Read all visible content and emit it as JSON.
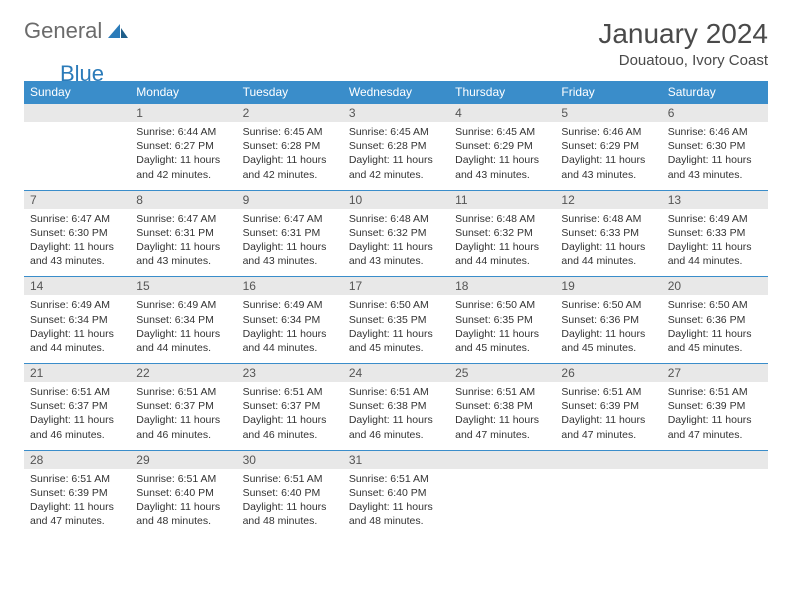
{
  "brand": {
    "word1": "General",
    "word2": "Blue"
  },
  "title": "January 2024",
  "location": "Douatouo, Ivory Coast",
  "colors": {
    "header_bg": "#3a8dca",
    "header_fg": "#ffffff",
    "daynum_bg": "#e8e8e8",
    "rule": "#3a8dca",
    "brand_gray": "#6b6b6b",
    "brand_blue": "#2b7bb9"
  },
  "day_headers": [
    "Sunday",
    "Monday",
    "Tuesday",
    "Wednesday",
    "Thursday",
    "Friday",
    "Saturday"
  ],
  "weeks": [
    [
      {
        "n": "",
        "sunrise": "",
        "sunset": "",
        "daylight": ""
      },
      {
        "n": "1",
        "sunrise": "Sunrise: 6:44 AM",
        "sunset": "Sunset: 6:27 PM",
        "daylight": "Daylight: 11 hours and 42 minutes."
      },
      {
        "n": "2",
        "sunrise": "Sunrise: 6:45 AM",
        "sunset": "Sunset: 6:28 PM",
        "daylight": "Daylight: 11 hours and 42 minutes."
      },
      {
        "n": "3",
        "sunrise": "Sunrise: 6:45 AM",
        "sunset": "Sunset: 6:28 PM",
        "daylight": "Daylight: 11 hours and 42 minutes."
      },
      {
        "n": "4",
        "sunrise": "Sunrise: 6:45 AM",
        "sunset": "Sunset: 6:29 PM",
        "daylight": "Daylight: 11 hours and 43 minutes."
      },
      {
        "n": "5",
        "sunrise": "Sunrise: 6:46 AM",
        "sunset": "Sunset: 6:29 PM",
        "daylight": "Daylight: 11 hours and 43 minutes."
      },
      {
        "n": "6",
        "sunrise": "Sunrise: 6:46 AM",
        "sunset": "Sunset: 6:30 PM",
        "daylight": "Daylight: 11 hours and 43 minutes."
      }
    ],
    [
      {
        "n": "7",
        "sunrise": "Sunrise: 6:47 AM",
        "sunset": "Sunset: 6:30 PM",
        "daylight": "Daylight: 11 hours and 43 minutes."
      },
      {
        "n": "8",
        "sunrise": "Sunrise: 6:47 AM",
        "sunset": "Sunset: 6:31 PM",
        "daylight": "Daylight: 11 hours and 43 minutes."
      },
      {
        "n": "9",
        "sunrise": "Sunrise: 6:47 AM",
        "sunset": "Sunset: 6:31 PM",
        "daylight": "Daylight: 11 hours and 43 minutes."
      },
      {
        "n": "10",
        "sunrise": "Sunrise: 6:48 AM",
        "sunset": "Sunset: 6:32 PM",
        "daylight": "Daylight: 11 hours and 43 minutes."
      },
      {
        "n": "11",
        "sunrise": "Sunrise: 6:48 AM",
        "sunset": "Sunset: 6:32 PM",
        "daylight": "Daylight: 11 hours and 44 minutes."
      },
      {
        "n": "12",
        "sunrise": "Sunrise: 6:48 AM",
        "sunset": "Sunset: 6:33 PM",
        "daylight": "Daylight: 11 hours and 44 minutes."
      },
      {
        "n": "13",
        "sunrise": "Sunrise: 6:49 AM",
        "sunset": "Sunset: 6:33 PM",
        "daylight": "Daylight: 11 hours and 44 minutes."
      }
    ],
    [
      {
        "n": "14",
        "sunrise": "Sunrise: 6:49 AM",
        "sunset": "Sunset: 6:34 PM",
        "daylight": "Daylight: 11 hours and 44 minutes."
      },
      {
        "n": "15",
        "sunrise": "Sunrise: 6:49 AM",
        "sunset": "Sunset: 6:34 PM",
        "daylight": "Daylight: 11 hours and 44 minutes."
      },
      {
        "n": "16",
        "sunrise": "Sunrise: 6:49 AM",
        "sunset": "Sunset: 6:34 PM",
        "daylight": "Daylight: 11 hours and 44 minutes."
      },
      {
        "n": "17",
        "sunrise": "Sunrise: 6:50 AM",
        "sunset": "Sunset: 6:35 PM",
        "daylight": "Daylight: 11 hours and 45 minutes."
      },
      {
        "n": "18",
        "sunrise": "Sunrise: 6:50 AM",
        "sunset": "Sunset: 6:35 PM",
        "daylight": "Daylight: 11 hours and 45 minutes."
      },
      {
        "n": "19",
        "sunrise": "Sunrise: 6:50 AM",
        "sunset": "Sunset: 6:36 PM",
        "daylight": "Daylight: 11 hours and 45 minutes."
      },
      {
        "n": "20",
        "sunrise": "Sunrise: 6:50 AM",
        "sunset": "Sunset: 6:36 PM",
        "daylight": "Daylight: 11 hours and 45 minutes."
      }
    ],
    [
      {
        "n": "21",
        "sunrise": "Sunrise: 6:51 AM",
        "sunset": "Sunset: 6:37 PM",
        "daylight": "Daylight: 11 hours and 46 minutes."
      },
      {
        "n": "22",
        "sunrise": "Sunrise: 6:51 AM",
        "sunset": "Sunset: 6:37 PM",
        "daylight": "Daylight: 11 hours and 46 minutes."
      },
      {
        "n": "23",
        "sunrise": "Sunrise: 6:51 AM",
        "sunset": "Sunset: 6:37 PM",
        "daylight": "Daylight: 11 hours and 46 minutes."
      },
      {
        "n": "24",
        "sunrise": "Sunrise: 6:51 AM",
        "sunset": "Sunset: 6:38 PM",
        "daylight": "Daylight: 11 hours and 46 minutes."
      },
      {
        "n": "25",
        "sunrise": "Sunrise: 6:51 AM",
        "sunset": "Sunset: 6:38 PM",
        "daylight": "Daylight: 11 hours and 47 minutes."
      },
      {
        "n": "26",
        "sunrise": "Sunrise: 6:51 AM",
        "sunset": "Sunset: 6:39 PM",
        "daylight": "Daylight: 11 hours and 47 minutes."
      },
      {
        "n": "27",
        "sunrise": "Sunrise: 6:51 AM",
        "sunset": "Sunset: 6:39 PM",
        "daylight": "Daylight: 11 hours and 47 minutes."
      }
    ],
    [
      {
        "n": "28",
        "sunrise": "Sunrise: 6:51 AM",
        "sunset": "Sunset: 6:39 PM",
        "daylight": "Daylight: 11 hours and 47 minutes."
      },
      {
        "n": "29",
        "sunrise": "Sunrise: 6:51 AM",
        "sunset": "Sunset: 6:40 PM",
        "daylight": "Daylight: 11 hours and 48 minutes."
      },
      {
        "n": "30",
        "sunrise": "Sunrise: 6:51 AM",
        "sunset": "Sunset: 6:40 PM",
        "daylight": "Daylight: 11 hours and 48 minutes."
      },
      {
        "n": "31",
        "sunrise": "Sunrise: 6:51 AM",
        "sunset": "Sunset: 6:40 PM",
        "daylight": "Daylight: 11 hours and 48 minutes."
      },
      {
        "n": "",
        "sunrise": "",
        "sunset": "",
        "daylight": ""
      },
      {
        "n": "",
        "sunrise": "",
        "sunset": "",
        "daylight": ""
      },
      {
        "n": "",
        "sunrise": "",
        "sunset": "",
        "daylight": ""
      }
    ]
  ]
}
